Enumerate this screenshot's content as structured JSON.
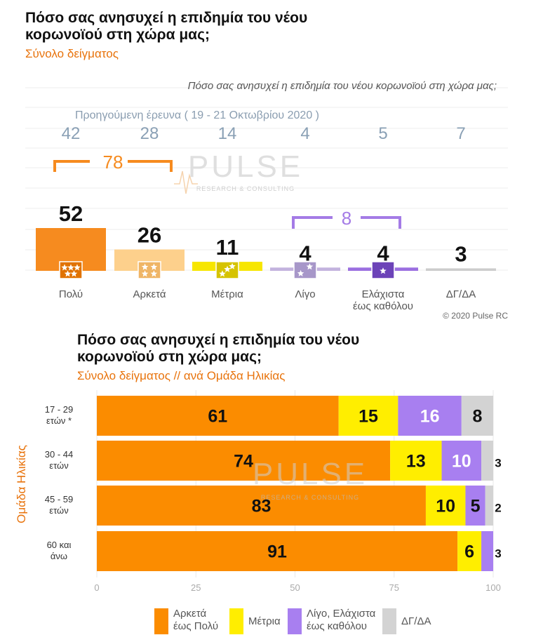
{
  "chart_data": [
    {
      "type": "bar",
      "title": "Πόσο σας ανησυχεί η επιδημία του νέου κορωνοϊού στη χώρα μας;",
      "subtitle": "Σύνολο δείγματος",
      "question": "Πόσο σας ανησυχεί η επιδημία του νέου κορωνοϊού στη χώρα μας;",
      "previous_label": "Προηγούμενη έρευνα ( 19 - 21 Οκτωβρίου 2020 )",
      "categories": [
        "Πολύ",
        "Αρκετά",
        "Μέτρια",
        "Λίγο",
        "Ελάχιστα\nέως καθόλου",
        "ΔΓ/ΔΑ"
      ],
      "values": [
        52,
        26,
        11,
        4,
        4,
        3
      ],
      "previous_values": [
        42,
        28,
        14,
        4,
        5,
        7
      ],
      "colors": [
        "#f68b1f",
        "#fdd08c",
        "#f7e600",
        "#c3b3de",
        "#9b6fe0",
        "#cccccc"
      ],
      "group_totals": [
        {
          "label": "78",
          "color": "#f68b1f"
        },
        {
          "label": "8",
          "color": "#a47be6"
        }
      ],
      "ylim": [
        0,
        60
      ],
      "copyright": "© 2020 Pulse RC"
    },
    {
      "type": "bar",
      "orientation": "horizontal-stacked",
      "title": "Πόσο σας ανησυχεί η επιδημία του νέου κορωνοϊού στη χώρα μας;",
      "subtitle": "Σύνολο δείγματος // ανά Ομάδα Ηλικίας",
      "ylabel": "Ομάδα Ηλικίας",
      "categories": [
        "17 - 29\nετών *",
        "30 - 44\nετών",
        "45 - 59\nετών",
        "60 και\nάνω"
      ],
      "series": [
        {
          "name": "Αρκετά\nέως Πολύ",
          "color": "#fb8c00",
          "values": [
            61,
            74,
            83,
            91
          ]
        },
        {
          "name": "Μέτρια",
          "color": "#ffee00",
          "values": [
            15,
            13,
            10,
            6
          ]
        },
        {
          "name": "Λίγο, Ελάχιστα\nέως καθόλου",
          "color": "#a87ff0",
          "values": [
            16,
            10,
            5,
            3
          ]
        },
        {
          "name": "ΔΓ/ΔΑ",
          "color": "#d3d3d3",
          "values": [
            8,
            3,
            2,
            0
          ]
        }
      ],
      "xlim": [
        0,
        100
      ],
      "xticks": [
        0,
        25,
        50,
        75,
        100
      ]
    }
  ],
  "watermark": {
    "brand": "PULSE",
    "tagline": "RESEARCH & CONSULTING"
  }
}
